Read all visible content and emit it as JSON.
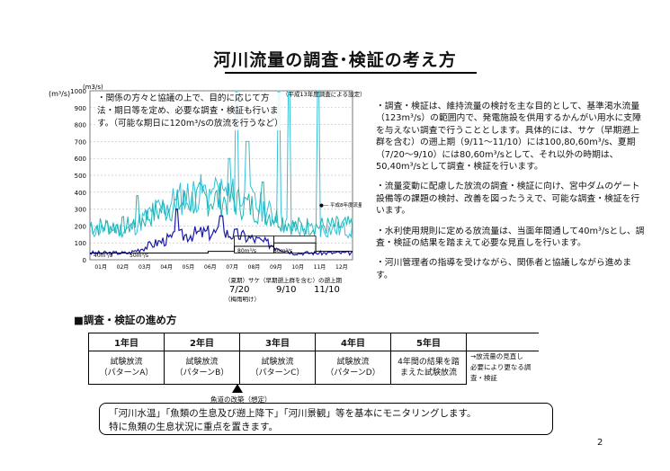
{
  "title": "河川流量の調査･検証の考え方",
  "chart": {
    "unit_top": "(m3/s)",
    "unit_left": "(m³/s)",
    "y_ticks": [
      "1000",
      "900",
      "800",
      "700",
      "600",
      "500",
      "400",
      "300",
      "200",
      "100",
      "0"
    ],
    "x_ticks": [
      "01月",
      "02月",
      "03月",
      "04月",
      "05月",
      "06月",
      "07月",
      "08月",
      "09月",
      "10月",
      "11月",
      "12月"
    ],
    "top_note": "（平成13年度調査による設定）",
    "legend_right": "●― 平成8年度流量",
    "inline_labels": [
      "40m³/s",
      "50m³/s",
      "80m³/s",
      "80m³/s"
    ],
    "bracket_caption": "（夏期）サケ（早期遡上群を含む）の遡上期",
    "date_labels": [
      "7/20",
      "9/10",
      "11/10"
    ],
    "date_sub": "（梅雨明け）"
  },
  "note_box": "・関係の方々と協議の上で、目的に応じて方法・期日等を定め、必要な調査・検証も行います。（可能な期日に120m³/sの放流を行うなど）",
  "right_column": [
    "・調査・検証は、維持流量の検討を主な目的として、基準渇水流量（123m³/s）の範囲内で、発電施設を供用するかんがい用水に支障を与えない調査で行うこととします。具体的には、サケ（早期遡上群を含む）の遡上期（9/11～11/10）には100,80,60m³/s、夏期（7/20～9/10）には80,60m³/sとして、それ以外の時期は、50,40m³/sとして調査・検証を行います。",
    "・流量変動に配慮した放流の調査・検証に向け、宮中ダムのゲート設備等の課題の検討、改善を図ったうえで、可能な調査・検証を行います。",
    "・水利使用規則に定める放流量は、当面年間通して40m³/sとし、調査・検証の結果を踏まえて必要な見直しを行います。",
    "・河川管理者の指導を受けながら、関係者と協議しながら進めます。"
  ],
  "schedule_heading": "■調査・検証の進め方",
  "schedule": {
    "years": [
      "1年目",
      "2年目",
      "3年目",
      "4年目",
      "5年目"
    ],
    "desc1": [
      "試験放流",
      "試験放流",
      "試験放流",
      "試験放流",
      "4年間の結果を踏"
    ],
    "desc2": [
      "（パターンA）",
      "（パターンB）",
      "（パターンC）",
      "（パターンD）",
      "まえた試験放流"
    ],
    "after1": "→放流量の見直し",
    "after2": "必要により更なる調査・検証"
  },
  "triangle_label": "魚道の改築（想定）",
  "bottom_box": [
    "「河川水温」「魚類の生息及び遡上降下」「河川景観」等を基本にモニタリングします。",
    "特に魚類の生息状況に重点を置きます。"
  ],
  "page_number": "2",
  "colors": {
    "series_cyan": "#1fb5b5",
    "series_blue": "#1a1aa8",
    "series_light": "#33c0d8"
  }
}
